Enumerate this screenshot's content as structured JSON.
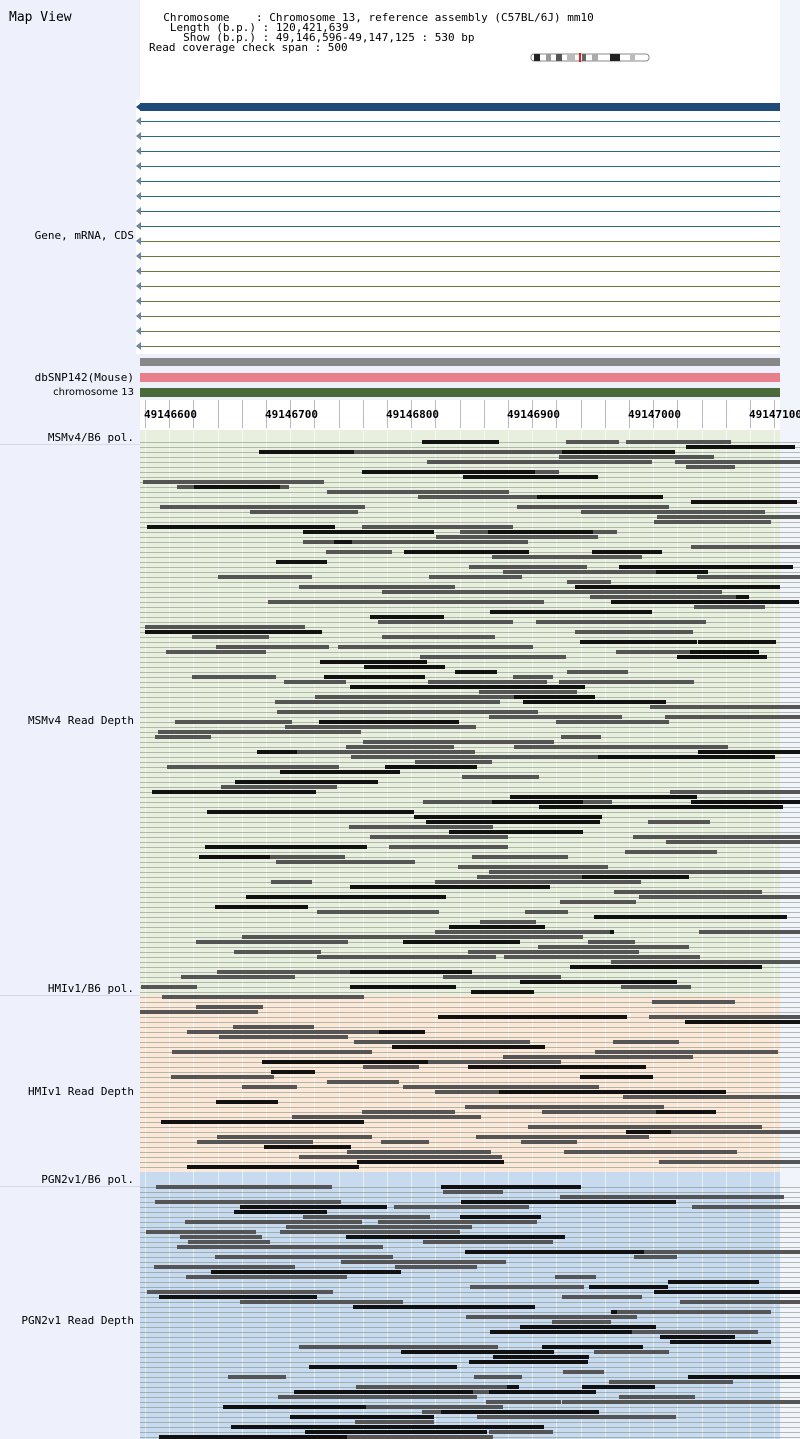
{
  "header": {
    "map_title": "Map View",
    "chromosome_line": "  Chromosome    : Chromosome 13, reference assembly (C57BL/6J) mm10",
    "length_line": "   Length (b.p.) : 120,421,639",
    "show_line": "     Show (b.p.) : 49,146,596-49,147,125 : 530 bp",
    "coverage_line": "Read coverage check span : 500"
  },
  "tracks": {
    "gene": "Gene, mRNA, CDS",
    "snp": "dbSNP142(Mouse)",
    "chrom": "chromosome 13"
  },
  "axis": {
    "ticks": [
      "49146600",
      "49146700",
      "49146800",
      "49146900",
      "49147000",
      "49147100"
    ]
  },
  "panels": [
    {
      "pol_label": "MSMv4/B6 pol.",
      "depth_label": "MSMv4 Read Depth",
      "bg": "#e9efdf"
    },
    {
      "pol_label": "HMIv1/B6 pol.",
      "depth_label": "HMIv1 Read Depth",
      "bg": "#fbe8d9"
    },
    {
      "pol_label": "PGN2v1/B6 pol.",
      "depth_label": "PGN2v1 Read Depth",
      "bg": "#c8daf0"
    }
  ],
  "colors": {
    "gene_bar": "#1e4a7a",
    "snp_bar": "#888888",
    "pink_bar": "#e8808c",
    "chrom_bar": "#4a6a3a"
  }
}
